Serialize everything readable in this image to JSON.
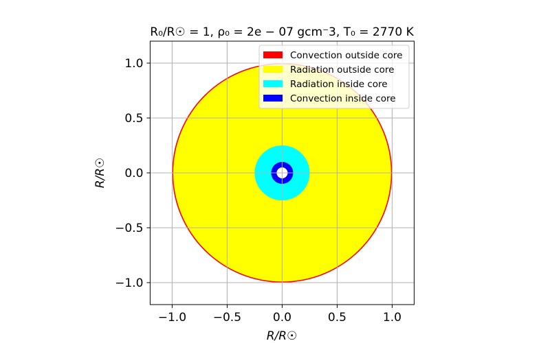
{
  "chart_data": {
    "type": "other",
    "title": "R₀/R☉ = 1, ρ₀ = 2e − 07 gcm⁻3, T₀ = 2770 K",
    "xlabel": "R/R☉",
    "ylabel": "R/R☉",
    "xlim": [
      -1.2,
      1.2
    ],
    "ylim": [
      -1.2,
      1.2
    ],
    "xticks": [
      -1.0,
      -0.5,
      0.0,
      0.5,
      1.0
    ],
    "yticks": [
      -1.0,
      -0.5,
      0.0,
      0.5,
      1.0
    ],
    "xtick_labels": [
      "−1.0",
      "−0.5",
      "0.0",
      "0.5",
      "1.0"
    ],
    "ytick_labels": [
      "−1.0",
      "−0.5",
      "0.0",
      "0.5",
      "1.0"
    ],
    "grid": true,
    "legend_position": "top-right",
    "legend": [
      {
        "label": "Convection outside core",
        "color": "#ff0000"
      },
      {
        "label": "Radiation outside core",
        "color": "#ffff00"
      },
      {
        "label": "Radiation inside core",
        "color": "#00ffff"
      },
      {
        "label": "Convection inside core",
        "color": "#0000ff"
      }
    ],
    "regions": [
      {
        "kind": "convection outside core",
        "outer_radius": 1.0,
        "inner_radius": 0.99,
        "color": "#ff0000"
      },
      {
        "kind": "radiation outside core",
        "outer_radius": 0.99,
        "inner_radius": 0.25,
        "color": "#ffff00"
      },
      {
        "kind": "radiation inside core",
        "outer_radius": 0.25,
        "inner_radius": 0.1,
        "color": "#00ffff"
      },
      {
        "kind": "convection inside core",
        "outer_radius": 0.1,
        "inner_radius": 0.05,
        "color": "#0000ff"
      }
    ]
  }
}
